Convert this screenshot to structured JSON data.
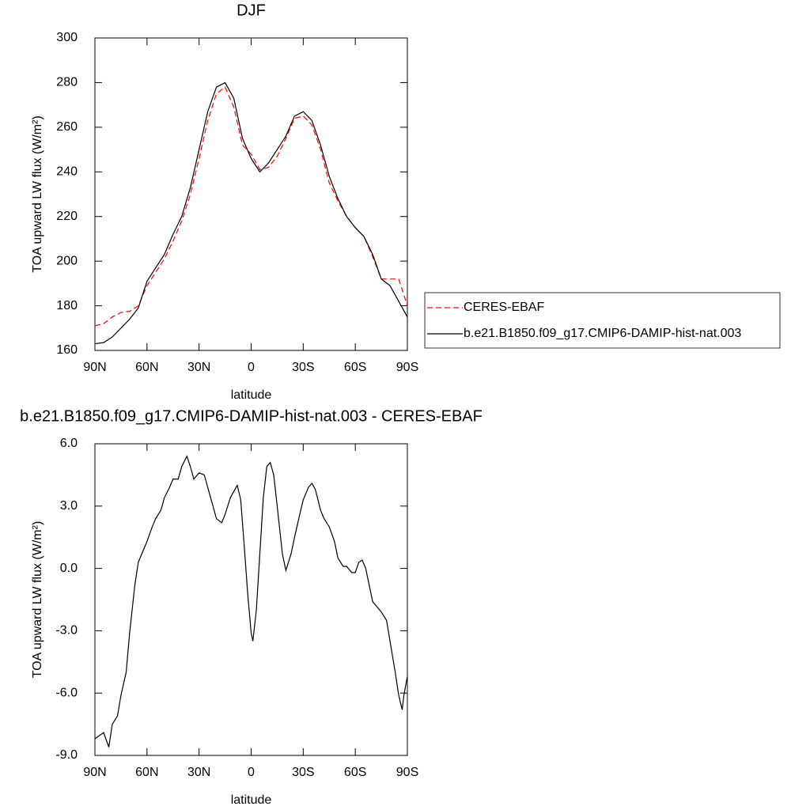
{
  "chart_data": [
    {
      "type": "line",
      "title": "DJF",
      "xlabel": "latitude",
      "ylabel": "TOA upward LW flux (W/m²)",
      "x": [
        90,
        85,
        80,
        75,
        70,
        65,
        60,
        55,
        50,
        45,
        40,
        35,
        30,
        25,
        20,
        15,
        10,
        5,
        0,
        -5,
        -10,
        -15,
        -20,
        -25,
        -30,
        -35,
        -40,
        -45,
        -50,
        -55,
        -60,
        -65,
        -70,
        -75,
        -80,
        -85,
        -90
      ],
      "series": [
        {
          "name": "CERES-EBAF",
          "color": "#ff0000",
          "line_style": "dashed",
          "values": [
            171,
            172,
            175,
            177,
            177.5,
            180,
            189,
            195,
            201,
            209,
            218,
            230,
            246,
            263,
            275,
            278,
            269,
            252,
            248,
            241,
            242,
            247,
            255,
            264,
            265,
            261,
            250,
            235,
            227,
            220,
            215,
            211,
            202,
            192,
            192,
            192,
            180
          ]
        },
        {
          "name": "b.e21.B1850.f09_g17.CMIP6-DAMIP-hist-nat.003",
          "color": "#000000",
          "line_style": "solid",
          "values": [
            163,
            163.5,
            166,
            170,
            174,
            179,
            191,
            197,
            203,
            212,
            220,
            233,
            250,
            267,
            278,
            280,
            273,
            255,
            246,
            240,
            244,
            250,
            256,
            265,
            267,
            263,
            252,
            238,
            228,
            220,
            215,
            211,
            203,
            192,
            189,
            182,
            175
          ]
        }
      ],
      "xlim": [
        90,
        -90
      ],
      "xticks": [
        {
          "value": 90,
          "label": "90N"
        },
        {
          "value": 60,
          "label": "60N"
        },
        {
          "value": 30,
          "label": "30N"
        },
        0,
        {
          "value": -30,
          "label": "30S"
        },
        {
          "value": -60,
          "label": "60S"
        },
        {
          "value": -90,
          "label": "90S"
        }
      ],
      "ylim": [
        160,
        300
      ],
      "yticks": [
        160,
        180,
        200,
        220,
        240,
        260,
        280,
        300
      ],
      "legend": "right"
    },
    {
      "type": "line",
      "title": "b.e21.B1850.f09_g17.CMIP6-DAMIP-hist-nat.003 - CERES-EBAF",
      "xlabel": "latitude",
      "ylabel": "TOA upward LW flux (W/m²)",
      "x": [
        90,
        85,
        82,
        80,
        77,
        75,
        72,
        70,
        67,
        65,
        62,
        60,
        57,
        55,
        52,
        50,
        47,
        45,
        42,
        40,
        37,
        35,
        33,
        30,
        27,
        25,
        22,
        20,
        17,
        15,
        12,
        10,
        8,
        6,
        4,
        2,
        0,
        -1,
        -3,
        -5,
        -7,
        -9,
        -11,
        -13,
        -15,
        -18,
        -20,
        -23,
        -25,
        -28,
        -30,
        -33,
        -35,
        -37,
        -40,
        -42,
        -45,
        -48,
        -50,
        -53,
        -55,
        -58,
        -60,
        -62,
        -64,
        -66,
        -68,
        -70,
        -73,
        -75,
        -78,
        -80,
        -83,
        -85,
        -87,
        -88,
        -90
      ],
      "series": [
        {
          "color": "#000000",
          "line_style": "solid",
          "values": [
            -8.2,
            -7.9,
            -8.6,
            -7.5,
            -7.1,
            -6.1,
            -5.0,
            -3.1,
            -0.8,
            0.3,
            0.9,
            1.3,
            2.0,
            2.4,
            2.8,
            3.4,
            3.9,
            4.3,
            4.3,
            4.9,
            5.4,
            4.9,
            4.3,
            4.6,
            4.5,
            3.9,
            3.0,
            2.4,
            2.2,
            2.6,
            3.4,
            3.7,
            4.0,
            3.3,
            1.1,
            -1.2,
            -3.1,
            -3.5,
            -2.0,
            0.7,
            3.4,
            4.9,
            5.1,
            4.5,
            3.0,
            0.7,
            -0.1,
            0.7,
            1.5,
            2.6,
            3.3,
            3.9,
            4.1,
            3.8,
            2.8,
            2.4,
            2.0,
            1.3,
            0.5,
            0.1,
            0.1,
            -0.2,
            -0.2,
            0.3,
            0.4,
            0.0,
            -0.8,
            -1.6,
            -1.9,
            -2.1,
            -2.5,
            -3.5,
            -5.0,
            -6.1,
            -6.8,
            -6.1,
            -5.2
          ]
        }
      ],
      "xlim": [
        90,
        -90
      ],
      "xticks": [
        {
          "value": 90,
          "label": "90N"
        },
        {
          "value": 60,
          "label": "60N"
        },
        {
          "value": 30,
          "label": "30N"
        },
        0,
        {
          "value": -30,
          "label": "30S"
        },
        {
          "value": -60,
          "label": "60S"
        },
        {
          "value": -90,
          "label": "90S"
        }
      ],
      "ylim": [
        -9,
        6
      ],
      "yticks": [
        {
          "value": 6,
          "label": "6.0"
        },
        {
          "value": 3,
          "label": "3.0"
        },
        {
          "value": 0,
          "label": "0.0"
        },
        {
          "value": -3,
          "label": "-3.0"
        },
        {
          "value": -6,
          "label": "-6.0"
        },
        {
          "value": -9,
          "label": "-9.0"
        }
      ]
    }
  ]
}
